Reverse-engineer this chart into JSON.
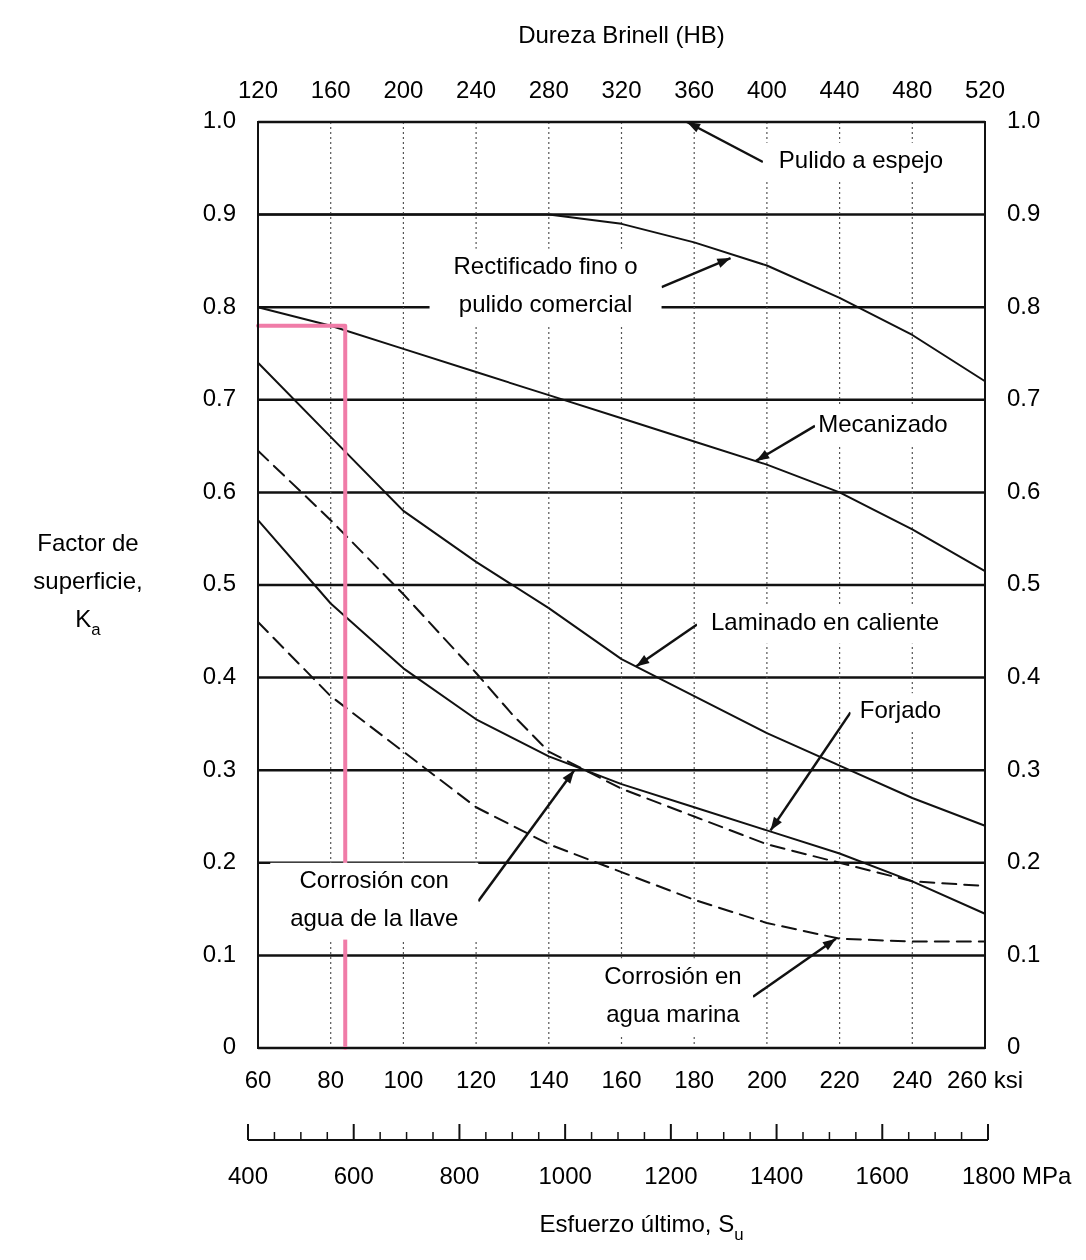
{
  "chart_data": {
    "type": "line",
    "x2label": "Dureza Brinell (HB)",
    "ylabel": "Factor de\nsuperficie,\nK$_{a}$",
    "xlim": [
      60,
      260
    ],
    "xticks": [
      60,
      80,
      100,
      120,
      140,
      160,
      180,
      200,
      220,
      240,
      {
        "value": 260,
        "label": "260 ksi"
      }
    ],
    "x2lim": [
      120,
      520
    ],
    "x2ticks": [
      120,
      160,
      200,
      240,
      280,
      320,
      360,
      400,
      440,
      480,
      520
    ],
    "ylim": [
      0,
      1
    ],
    "yticks": [
      0,
      0.1,
      0.2,
      0.3,
      0.4,
      0.5,
      0.6,
      0.7,
      0.8,
      0.9,
      {
        "value": 1,
        "label": "1.0"
      }
    ],
    "y2lim": [
      0,
      1
    ],
    "y2ticks": [
      0,
      0.1,
      0.2,
      0.3,
      0.4,
      0.5,
      0.6,
      0.7,
      0.8,
      0.9,
      {
        "value": 1,
        "label": "1.0"
      }
    ],
    "grid": true,
    "series": [
      {
        "color": "#111111",
        "x": [
          60,
          260
        ],
        "values": [
          1,
          1
        ]
      },
      {
        "color": "#111111",
        "x": [
          60,
          140,
          160,
          180,
          200,
          220,
          240,
          260
        ],
        "values": [
          0.9,
          0.9,
          0.89,
          0.87,
          0.845,
          0.81,
          0.77,
          0.72
        ]
      },
      {
        "color": "#111111",
        "x": [
          60,
          80,
          100,
          120,
          140,
          160,
          180,
          200,
          220,
          240,
          260
        ],
        "values": [
          0.8,
          0.78,
          0.755,
          0.73,
          0.705,
          0.68,
          0.655,
          0.63,
          0.6,
          0.56,
          0.515
        ]
      },
      {
        "color": "#111111",
        "x": [
          60,
          80,
          100,
          120,
          140,
          160,
          180,
          200,
          220,
          240,
          260
        ],
        "values": [
          0.74,
          0.66,
          0.58,
          0.525,
          0.475,
          0.42,
          0.38,
          0.34,
          0.305,
          0.27,
          0.24
        ]
      },
      {
        "color": "#111111",
        "x": [
          60,
          80,
          100,
          120,
          140,
          160,
          180,
          200,
          220,
          240,
          260
        ],
        "values": [
          0.57,
          0.48,
          0.41,
          0.355,
          0.315,
          0.285,
          0.26,
          0.235,
          0.21,
          0.18,
          0.145
        ]
      },
      {
        "color": "#111111",
        "line_style": "dashed",
        "x": [
          60,
          80,
          100,
          120,
          130,
          140,
          160,
          180,
          200,
          220,
          240,
          260
        ],
        "values": [
          0.645,
          0.57,
          0.49,
          0.405,
          0.36,
          0.32,
          0.28,
          0.25,
          0.22,
          0.2,
          0.18,
          0.175
        ]
      },
      {
        "color": "#111111",
        "line_style": "dashed",
        "x": [
          60,
          80,
          100,
          120,
          140,
          160,
          180,
          200,
          220,
          240,
          260
        ],
        "values": [
          0.46,
          0.38,
          0.32,
          0.26,
          0.22,
          0.19,
          0.16,
          0.135,
          0.118,
          0.115,
          0.115
        ]
      },
      {
        "color": "#f07ca8",
        "x": [
          60,
          84,
          84
        ],
        "values": [
          0.78,
          0.78,
          0
        ]
      }
    ],
    "annotations": [
      {
        "text": "Pulido a espejo",
        "x": 178,
        "y": 1
      },
      {
        "text": "Rectificado fino o\npulido comercial",
        "x": 190,
        "y": 0.853
      },
      {
        "text": "Mecanizado",
        "x": 197,
        "y": 0.634
      },
      {
        "text": "Laminado en caliente",
        "x": 164,
        "y": 0.412
      },
      {
        "text": "Forjado",
        "x": 201,
        "y": 0.235
      },
      {
        "text": "Corrosión con\nagua de la llave",
        "x": 147,
        "y": 0.3
      },
      {
        "text": "Corrosión en\nagua marina",
        "x": 219,
        "y": 0.118
      },
      "400",
      "600",
      "800",
      "1000",
      "1200",
      "1400",
      "1600",
      "1800 MPa",
      "Esfuerzo último, S$_{u}$"
    ]
  }
}
